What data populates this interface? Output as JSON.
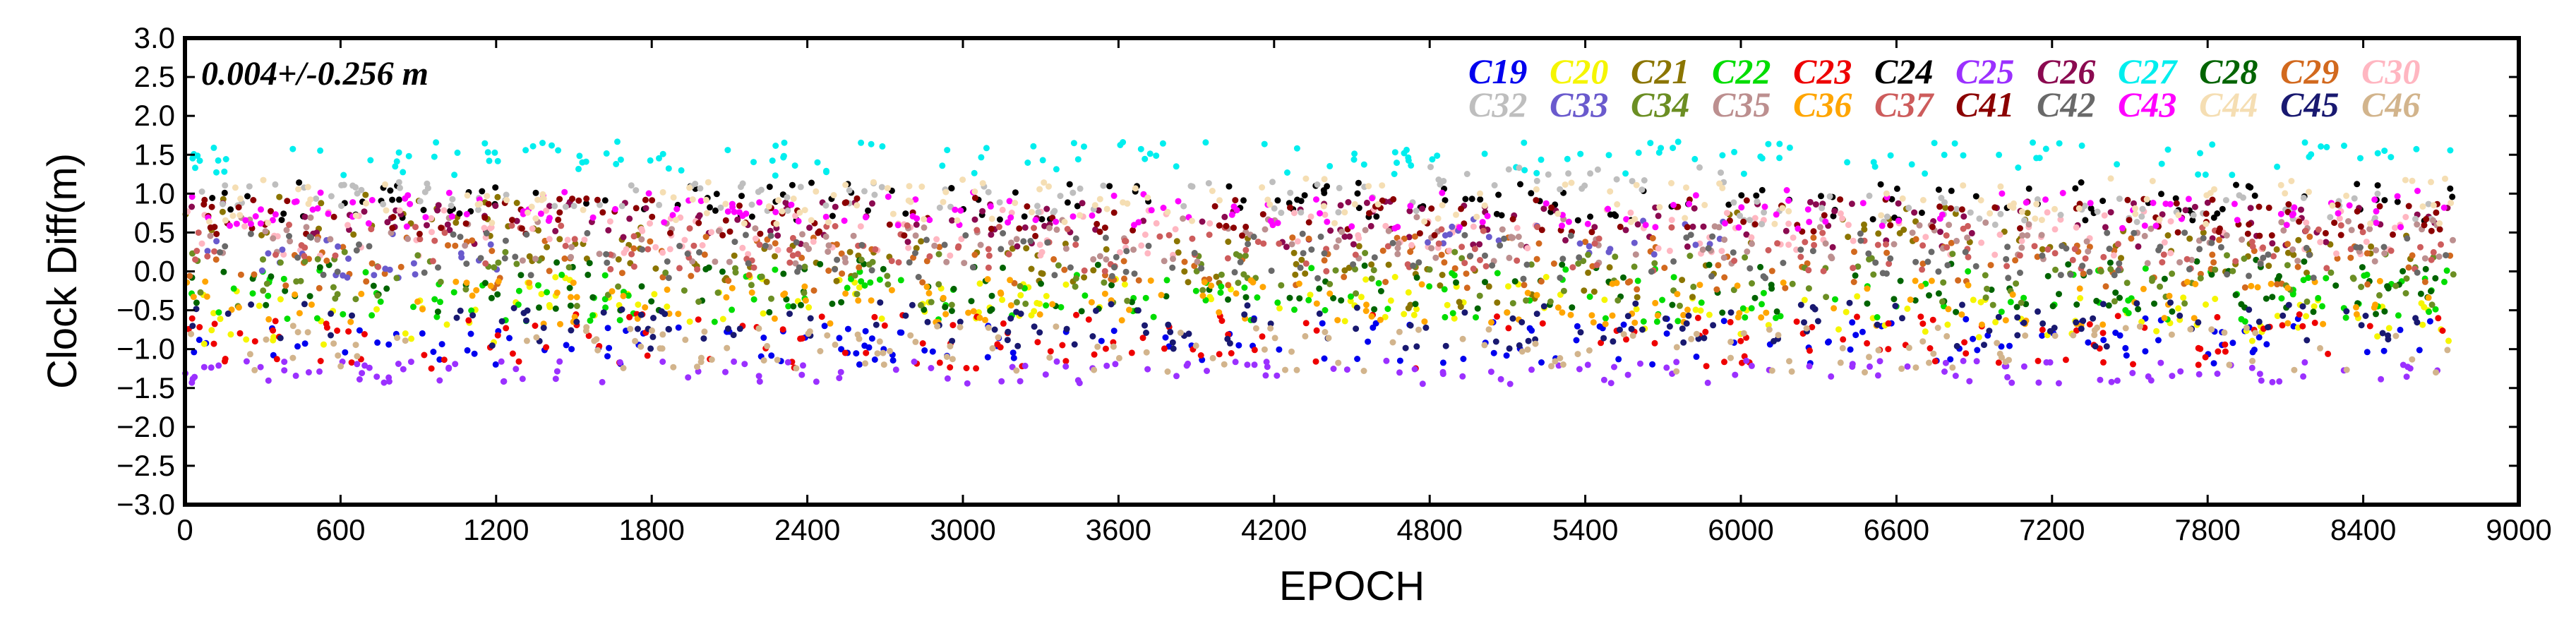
{
  "chart_data": {
    "type": "scatter",
    "title": "",
    "xlabel": "EPOCH",
    "ylabel": "Clock Diff(m)",
    "xlim": [
      0,
      9000
    ],
    "ylim": [
      -3.0,
      3.0
    ],
    "xticks": [
      0,
      600,
      1200,
      1800,
      2400,
      3000,
      3600,
      4200,
      4800,
      5400,
      6000,
      6600,
      7200,
      7800,
      8400,
      9000
    ],
    "xtick_labels": [
      "0",
      "600",
      "1200",
      "1800",
      "2400",
      "3000",
      "3600",
      "4200",
      "4800",
      "5400",
      "6000",
      "6600",
      "7200",
      "7800",
      "8400",
      "9000"
    ],
    "yticks": [
      3.0,
      2.5,
      2.0,
      1.5,
      1.0,
      0.5,
      0.0,
      -0.5,
      -1.0,
      -1.5,
      -2.0,
      -2.5,
      -3.0
    ],
    "ytick_labels": [
      "3.0",
      "2.5",
      "2.0",
      "1.5",
      "1.0",
      "0.5",
      "0.0",
      "−0.5",
      "−1.0",
      "−1.5",
      "−2.0",
      "−2.5",
      "−3.0"
    ],
    "annotation": "0.004+/-0.256 m",
    "legend_position": "top-right",
    "legend_rows": [
      [
        "C19",
        "C20",
        "C21",
        "C22",
        "C23",
        "C24",
        "C25",
        "C26",
        "C27",
        "C28",
        "C29",
        "C30"
      ],
      [
        "C32",
        "C33",
        "C34",
        "C35",
        "C36",
        "C37",
        "C41",
        "C42",
        "C43",
        "C44",
        "C45",
        "C46"
      ]
    ],
    "series": [
      {
        "name": "C19",
        "color": "#0000ee",
        "segments": [
          {
            "x": [
              0,
              3900
            ],
            "mean": -0.95,
            "spread": 0.25
          },
          {
            "x": [
              3900,
              9000
            ],
            "mean": -0.9,
            "spread": 0.3
          }
        ]
      },
      {
        "name": "C20",
        "color": "#f5f500",
        "segments": [
          {
            "x": [
              0,
              1300
            ],
            "mean": -0.6,
            "spread": 0.35
          },
          {
            "x": [
              1300,
              5400
            ],
            "mean": -0.35,
            "spread": 0.3
          },
          {
            "x": [
              5400,
              9000
            ],
            "mean": -0.6,
            "spread": 0.3
          }
        ]
      },
      {
        "name": "C21",
        "color": "#8b7500",
        "segments": [
          {
            "x": [
              0,
              1320
            ],
            "mean": 0.75,
            "spread": 0.3
          },
          {
            "x": [
              1320,
              2050
            ],
            "mean": 0.3,
            "spread": 0.3
          },
          {
            "x": [
              2050,
              4700
            ],
            "mean": 0.15,
            "spread": 0.3
          },
          {
            "x": [
              4700,
              5900
            ],
            "mean": -0.2,
            "spread": 0.3
          },
          {
            "x": [
              5900,
              7150
            ],
            "mean": 0.6,
            "spread": 0.25
          },
          {
            "x": [
              7150,
              8700
            ],
            "mean": 0.25,
            "spread": 0.3
          }
        ]
      },
      {
        "name": "C22",
        "color": "#00dd00",
        "segments": [
          {
            "x": [
              0,
              9000
            ],
            "mean": -0.3,
            "spread": 0.35
          }
        ]
      },
      {
        "name": "C23",
        "color": "#ee0000",
        "segments": [
          {
            "x": [
              0,
              9000
            ],
            "mean": -0.9,
            "spread": 0.35
          }
        ]
      },
      {
        "name": "C24",
        "color": "#000000",
        "segments": [
          {
            "x": [
              0,
              9000
            ],
            "mean": 0.9,
            "spread": 0.25
          }
        ]
      },
      {
        "name": "C25",
        "color": "#9b30ff",
        "segments": [
          {
            "x": [
              0,
              9000
            ],
            "mean": -1.3,
            "spread": 0.15
          }
        ]
      },
      {
        "name": "C26",
        "color": "#8b0a50",
        "segments": [
          {
            "x": [
              0,
              9000
            ],
            "mean": 0.6,
            "spread": 0.3
          }
        ]
      },
      {
        "name": "C27",
        "color": "#00eeee",
        "segments": [
          {
            "x": [
              0,
              9000
            ],
            "mean": 1.45,
            "spread": 0.22
          }
        ]
      },
      {
        "name": "C28",
        "color": "#006400",
        "segments": [
          {
            "x": [
              0,
              9000
            ],
            "mean": -0.2,
            "spread": 0.35
          }
        ]
      },
      {
        "name": "C29",
        "color": "#d2691e",
        "segments": [
          {
            "x": [
              0,
              9000
            ],
            "mean": 0.1,
            "spread": 0.35
          }
        ]
      },
      {
        "name": "C30",
        "color": "#ffb6c1",
        "segments": [
          {
            "x": [
              0,
              9000
            ],
            "mean": 0.5,
            "spread": 0.3
          }
        ]
      },
      {
        "name": "C32",
        "color": "#bebebe",
        "segments": [
          {
            "x": [
              0,
              4750
            ],
            "mean": 0.95,
            "spread": 0.2
          },
          {
            "x": [
              4750,
              5950
            ],
            "mean": 1.2,
            "spread": 0.15
          },
          {
            "x": [
              5950,
              9000
            ],
            "mean": 0.8,
            "spread": 0.2
          }
        ]
      },
      {
        "name": "C33",
        "color": "#6a5acd",
        "segments": [
          {
            "x": [
              0,
              1300
            ],
            "mean": 0.2,
            "spread": 0.3
          },
          {
            "x": [
              4750,
              5950
            ],
            "mean": 0.45,
            "spread": 0.25
          }
        ]
      },
      {
        "name": "C34",
        "color": "#6b8e23",
        "segments": [
          {
            "x": [
              0,
              9000
            ],
            "mean": -0.1,
            "spread": 0.35
          }
        ]
      },
      {
        "name": "C35",
        "color": "#bc8f8f",
        "segments": [
          {
            "x": [
              0,
              9000
            ],
            "mean": 0.4,
            "spread": 0.3
          }
        ]
      },
      {
        "name": "C36",
        "color": "#ffa500",
        "segments": [
          {
            "x": [
              0,
              9000
            ],
            "mean": -0.4,
            "spread": 0.3
          }
        ]
      },
      {
        "name": "C37",
        "color": "#cd5c5c",
        "segments": [
          {
            "x": [
              0,
              9000
            ],
            "mean": 0.3,
            "spread": 0.3
          }
        ]
      },
      {
        "name": "C41",
        "color": "#8b0000",
        "segments": [
          {
            "x": [
              0,
              9000
            ],
            "mean": 0.7,
            "spread": 0.25
          }
        ]
      },
      {
        "name": "C42",
        "color": "#696969",
        "segments": [
          {
            "x": [
              0,
              9000
            ],
            "mean": 0.2,
            "spread": 0.3
          }
        ]
      },
      {
        "name": "C43",
        "color": "#ff00ff",
        "segments": [
          {
            "x": [
              0,
              9000
            ],
            "mean": 0.8,
            "spread": 0.25
          }
        ]
      },
      {
        "name": "C44",
        "color": "#f5deb3",
        "segments": [
          {
            "x": [
              0,
              9000
            ],
            "mean": 0.9,
            "spread": 0.3
          }
        ]
      },
      {
        "name": "C45",
        "color": "#191970",
        "segments": [
          {
            "x": [
              0,
              9000
            ],
            "mean": -0.7,
            "spread": 0.3
          }
        ]
      },
      {
        "name": "C46",
        "color": "#d2b48c",
        "segments": [
          {
            "x": [
              0,
              9000
            ],
            "mean": -1.0,
            "spread": 0.3
          }
        ]
      }
    ]
  }
}
